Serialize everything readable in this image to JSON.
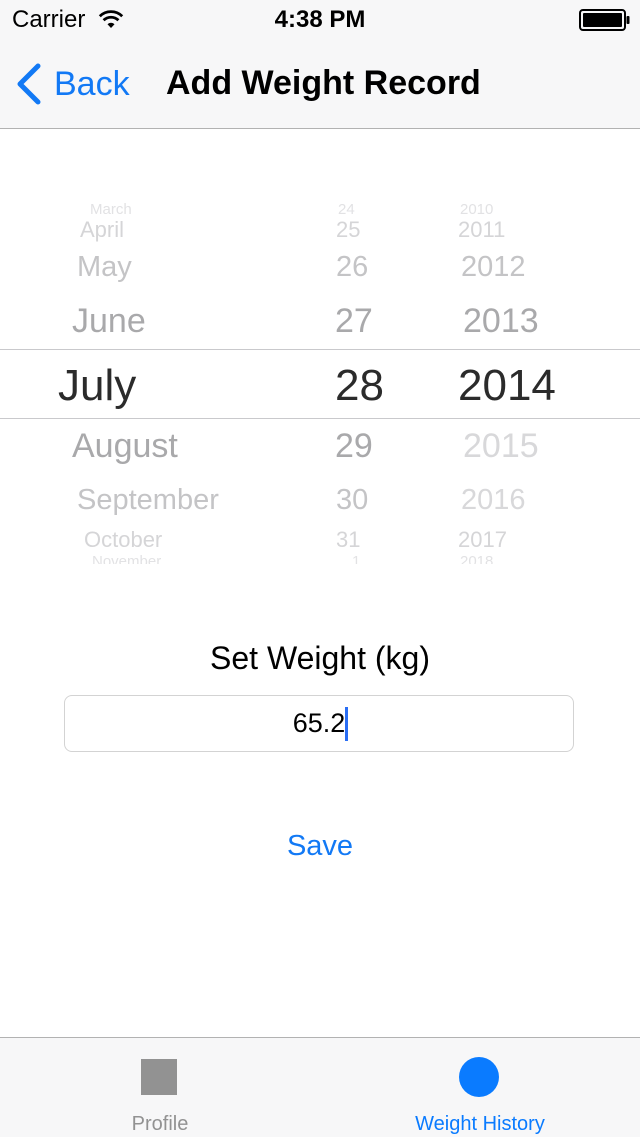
{
  "status_bar": {
    "carrier": "Carrier",
    "time": "4:38 PM"
  },
  "nav": {
    "back_label": "Back",
    "title": "Add Weight Record"
  },
  "date_picker": {
    "months": [
      "March",
      "April",
      "May",
      "June",
      "July",
      "August",
      "September",
      "October",
      "November"
    ],
    "days": [
      "24",
      "25",
      "26",
      "27",
      "28",
      "29",
      "30",
      "31",
      "1"
    ],
    "years": [
      "2010",
      "2011",
      "2012",
      "2013",
      "2014",
      "2015",
      "2016",
      "2017",
      "2018"
    ],
    "selected": {
      "month": "July",
      "day": "28",
      "year": "2014"
    }
  },
  "weight": {
    "label": "Set Weight (kg)",
    "value": "65.2",
    "save_label": "Save"
  },
  "tab_bar": {
    "tabs": [
      {
        "label": "Profile",
        "icon": "square-icon",
        "active": false
      },
      {
        "label": "Weight History",
        "icon": "circle-icon",
        "active": true
      }
    ]
  },
  "colors": {
    "accent": "#1279f5",
    "tab_active": "#0a7bff",
    "tab_inactive": "#929292"
  }
}
